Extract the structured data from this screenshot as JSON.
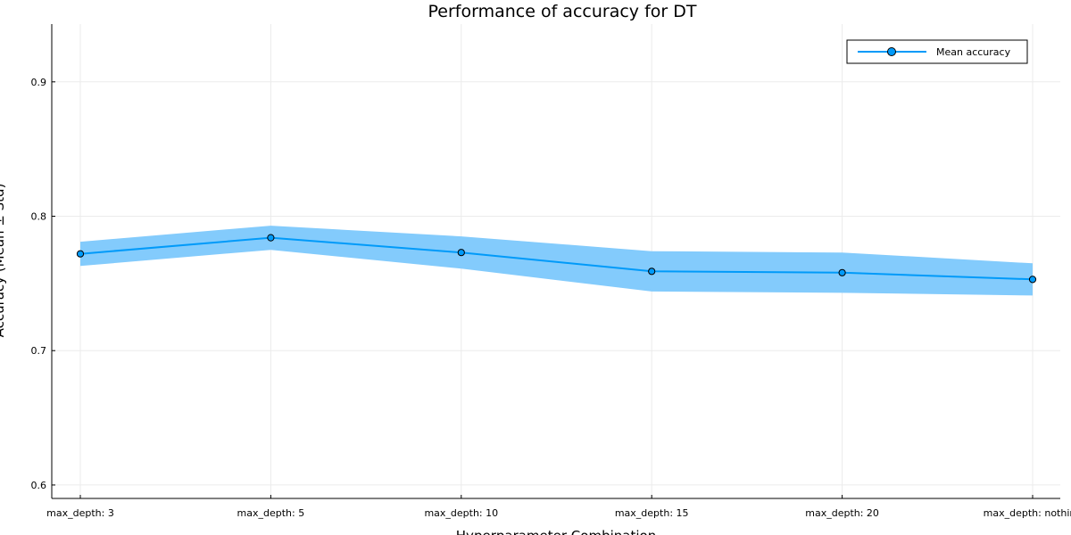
{
  "chart_data": {
    "type": "line",
    "title": "Performance of accuracy for DT",
    "xlabel": "Hyperparameter Combination",
    "ylabel": "Accuracy (Mean ± Std)",
    "categories": [
      "max_depth: 3",
      "max_depth: 5",
      "max_depth: 10",
      "max_depth: 15",
      "max_depth: 20",
      "max_depth: nothing"
    ],
    "series": [
      {
        "name": "Mean accuracy",
        "values": [
          0.772,
          0.784,
          0.773,
          0.759,
          0.758,
          0.753
        ],
        "std": [
          0.009,
          0.009,
          0.012,
          0.015,
          0.015,
          0.012
        ],
        "color": "#009af9",
        "band_color": "#83cbfc",
        "marker": "circle"
      }
    ],
    "ylim": [
      0.59,
      0.943
    ],
    "yticks": [
      0.6,
      0.7,
      0.8,
      0.9
    ],
    "ytick_labels": [
      "0.6",
      "0.7",
      "0.8",
      "0.9"
    ],
    "grid": true,
    "legend_position": "top-right"
  }
}
